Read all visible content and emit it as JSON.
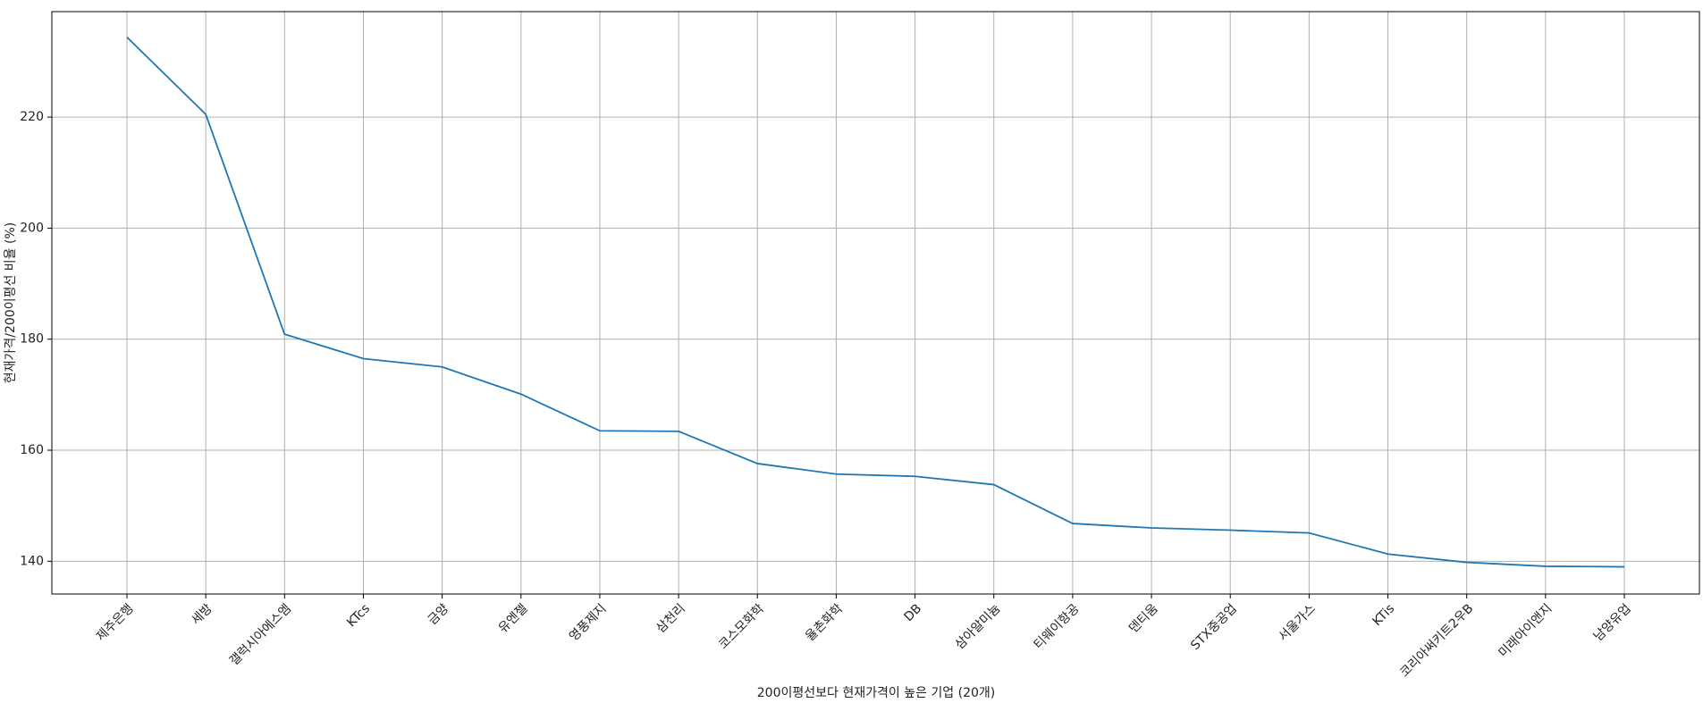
{
  "chart_data": {
    "type": "line",
    "xlabel": "200이평선보다 현재가격이 높은 기업 (20개)",
    "ylabel": "현재가격/200이평선 비율 (%)",
    "categories": [
      "제주은행",
      "세방",
      "갤럭시아에스엠",
      "KTcs",
      "금양",
      "유엔젤",
      "영풍제지",
      "삼천리",
      "코스모화학",
      "율촌화학",
      "DB",
      "삼아알미늄",
      "티웨이항공",
      "덴티움",
      "STX중공업",
      "서울가스",
      "KTis",
      "코리아써키트2우B",
      "미래아이앤지",
      "남양유업"
    ],
    "series": [
      {
        "name": "현재가격/200이평선 비율",
        "color": "#1f77b4",
        "values": [
          234.4,
          220.5,
          180.9,
          176.5,
          175.0,
          170.1,
          163.5,
          163.4,
          157.6,
          155.7,
          155.3,
          153.8,
          146.8,
          146.0,
          145.6,
          145.1,
          141.3,
          139.8,
          139.1,
          139.0
        ]
      }
    ],
    "ylim": [
      134.1,
      239.0
    ],
    "yticks": [
      140,
      160,
      180,
      200,
      220
    ],
    "grid": true
  }
}
